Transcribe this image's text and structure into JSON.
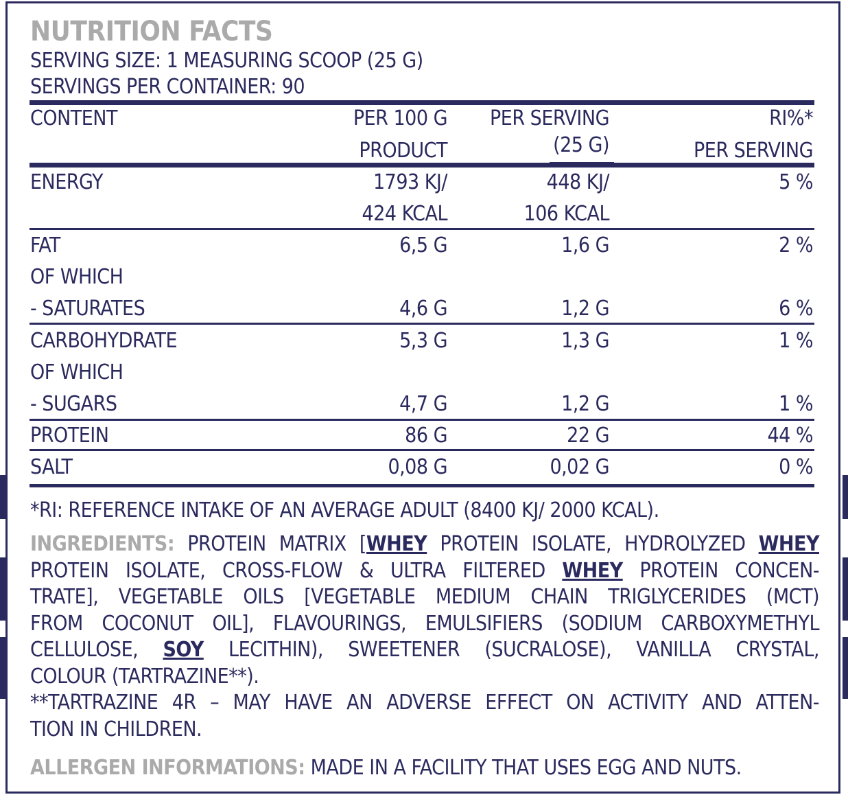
{
  "title": "NUTRITION FACTS",
  "serving_size": "SERVING SIZE: 1 MEASURING SCOOP (25 G)",
  "servings_per_container": "SERVINGS PER CONTAINER: 90",
  "table": {
    "headers": {
      "content": "CONTENT",
      "per100_l1": "PER 100 G",
      "per100_l2": "PRODUCT",
      "serving_l1": "PER SERVING",
      "serving_l2": "(25 G)",
      "ri_l1": "RI%*",
      "ri_l2": "PER SERVING"
    },
    "energy": {
      "label": "ENERGY",
      "per100_l1": "1793 KJ/",
      "per100_l2": "424 KCAL",
      "serving_l1": "448 KJ/",
      "serving_l2": "106 KCAL",
      "ri": "5 %"
    },
    "fat": {
      "label": "FAT",
      "per100": "6,5 G",
      "serving": "1,6 G",
      "ri": "2 %"
    },
    "fat_of_which": "OF WHICH",
    "saturates": {
      "label": "- SATURATES",
      "per100": "4,6 G",
      "serving": "1,2 G",
      "ri": "6 %"
    },
    "carbohydrate": {
      "label": "CARBOHYDRATE",
      "per100": "5,3 G",
      "serving": "1,3 G",
      "ri": "1 %"
    },
    "carb_of_which": "OF WHICH",
    "sugars": {
      "label": "- SUGARS",
      "per100": "4,7 G",
      "serving": "1,2 G",
      "ri": "1 %"
    },
    "protein": {
      "label": "PROTEIN",
      "per100": "86 G",
      "serving": "22 G",
      "ri": "44 %"
    },
    "salt": {
      "label": "SALT",
      "per100": "0,08 G",
      "serving": "0,02 G",
      "ri": "0 %"
    }
  },
  "ri_note": "*RI: REFERENCE INTAKE OF AN AVERAGE ADULT (8400 KJ/ 2000 KCAL).",
  "ingredients": {
    "label": "INGREDIENTS:",
    "l1a": "PROTEIN MATRIX [",
    "whey": "WHEY",
    "l1b": "PROTEIN ISOLATE, HYDROLYZED",
    "l2a": "PROTEIN ISOLATE, CROSS-FLOW & ULTRA FILTERED",
    "l2b": "PROTEIN CONCEN-",
    "l3": "TRATE], VEGETABLE OILS [VEGETABLE MEDIUM CHAIN TRIGLYCERIDES (MCT)",
    "l4": "FROM COCONUT OIL], FLAVOURINGS, EMULSIFIERS (SODIUM CARBOXYMETHYL",
    "l5a": "CELLULOSE,",
    "soy": "SOY",
    "l5b": "LECITHIN), SWEETENER (SUCRALOSE), VANILLA CRYSTAL,",
    "l6": "COLOUR (TARTRAZINE**).",
    "l7": "**TARTRAZINE 4R – MAY HAVE AN ADVERSE EFFECT ON ACTIVITY AND ATTEN-",
    "l8": "TION IN CHILDREN."
  },
  "allergen": {
    "label": "ALLERGEN INFORMATIONS:",
    "text": "MADE IN A FACILITY THAT USES EGG AND NUTS."
  },
  "colors": {
    "ink": "#2b2a5e",
    "grey": "#aaaaaa"
  }
}
